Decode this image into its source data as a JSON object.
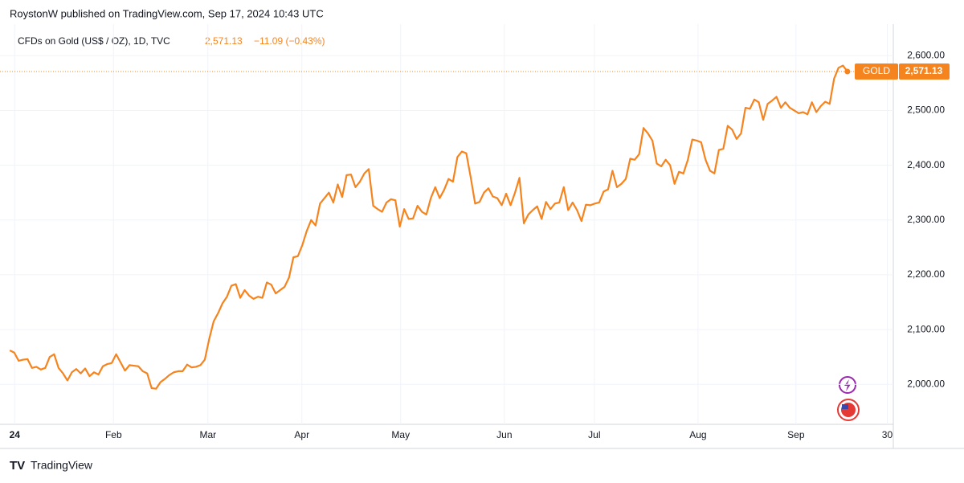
{
  "chart_data": {
    "type": "line",
    "publisher": "RoystonW published on TradingView.com, Sep 17, 2024 10:43 UTC",
    "title": "CFDs on Gold (US$ / OZ), 1D, TVC",
    "last_value_label": "2,571.13",
    "change": "−11.09 (−0.43%)",
    "brand": "TradingView",
    "series": [
      {
        "name": "GOLD",
        "color": "#f5841f",
        "values": [
          2062,
          2058,
          2043,
          2045,
          2046,
          2030,
          2032,
          2027,
          2030,
          2050,
          2055,
          2030,
          2020,
          2007,
          2022,
          2028,
          2020,
          2029,
          2015,
          2022,
          2018,
          2033,
          2037,
          2039,
          2055,
          2040,
          2025,
          2035,
          2034,
          2033,
          2024,
          2020,
          1993,
          1992,
          2004,
          2010,
          2017,
          2022,
          2024,
          2024,
          2036,
          2031,
          2032,
          2035,
          2045,
          2083,
          2115,
          2130,
          2148,
          2160,
          2180,
          2183,
          2158,
          2172,
          2162,
          2156,
          2160,
          2158,
          2186,
          2182,
          2166,
          2172,
          2178,
          2195,
          2232,
          2234,
          2254,
          2280,
          2300,
          2290,
          2330,
          2340,
          2350,
          2332,
          2365,
          2342,
          2382,
          2383,
          2360,
          2370,
          2385,
          2393,
          2326,
          2320,
          2315,
          2332,
          2338,
          2336,
          2288,
          2320,
          2302,
          2303,
          2326,
          2315,
          2310,
          2340,
          2360,
          2340,
          2355,
          2375,
          2370,
          2415,
          2425,
          2422,
          2378,
          2330,
          2333,
          2350,
          2358,
          2343,
          2340,
          2327,
          2348,
          2327,
          2350,
          2377,
          2294,
          2310,
          2318,
          2325,
          2302,
          2333,
          2320,
          2330,
          2332,
          2360,
          2318,
          2332,
          2318,
          2298,
          2328,
          2327,
          2330,
          2332,
          2352,
          2356,
          2390,
          2360,
          2366,
          2375,
          2412,
          2410,
          2420,
          2468,
          2458,
          2445,
          2403,
          2398,
          2410,
          2400,
          2366,
          2388,
          2385,
          2410,
          2447,
          2445,
          2442,
          2410,
          2390,
          2385,
          2428,
          2430,
          2472,
          2465,
          2448,
          2458,
          2505,
          2503,
          2520,
          2515,
          2483,
          2512,
          2518,
          2525,
          2505,
          2515,
          2505,
          2500,
          2495,
          2497,
          2493,
          2515,
          2497,
          2508,
          2516,
          2512,
          2558,
          2578,
          2582,
          2571.13
        ]
      }
    ],
    "xlim": [
      -0.4,
      199
    ],
    "xticks": [
      {
        "value": 1.1,
        "label": "24"
      },
      {
        "value": 23.4,
        "label": "Feb"
      },
      {
        "value": 44.7,
        "label": "Mar"
      },
      {
        "value": 65.9,
        "label": "Apr"
      },
      {
        "value": 88.2,
        "label": "May"
      },
      {
        "value": 111.6,
        "label": "Jun"
      },
      {
        "value": 131.9,
        "label": "Jul"
      },
      {
        "value": 155.3,
        "label": "Aug"
      },
      {
        "value": 177.4,
        "label": "Sep"
      },
      {
        "value": 198.0,
        "label": "30"
      }
    ],
    "ylim": [
      1927,
      2643
    ],
    "yticks": [
      {
        "value": 2000,
        "label": "2,000.00"
      },
      {
        "value": 2100,
        "label": "2,100.00"
      },
      {
        "value": 2200,
        "label": "2,200.00"
      },
      {
        "value": 2300,
        "label": "2,300.00"
      },
      {
        "value": 2400,
        "label": "2,400.00"
      },
      {
        "value": 2500,
        "label": "2,500.00"
      },
      {
        "value": 2600,
        "label": "2,600.00"
      }
    ],
    "grid": true
  }
}
